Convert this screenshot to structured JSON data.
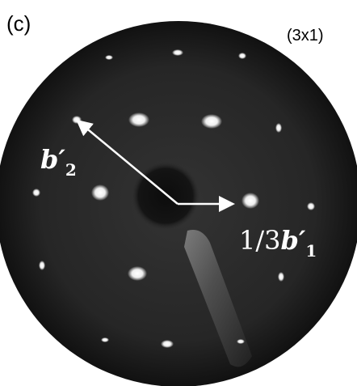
{
  "panel_label": "(c)",
  "reconstruction": "(3x1)",
  "vector_labels": [
    {
      "prefix": "",
      "symbol": "b′",
      "subscript": "2"
    },
    {
      "prefix": "1/3",
      "symbol": "b′",
      "subscript": "1"
    }
  ]
}
